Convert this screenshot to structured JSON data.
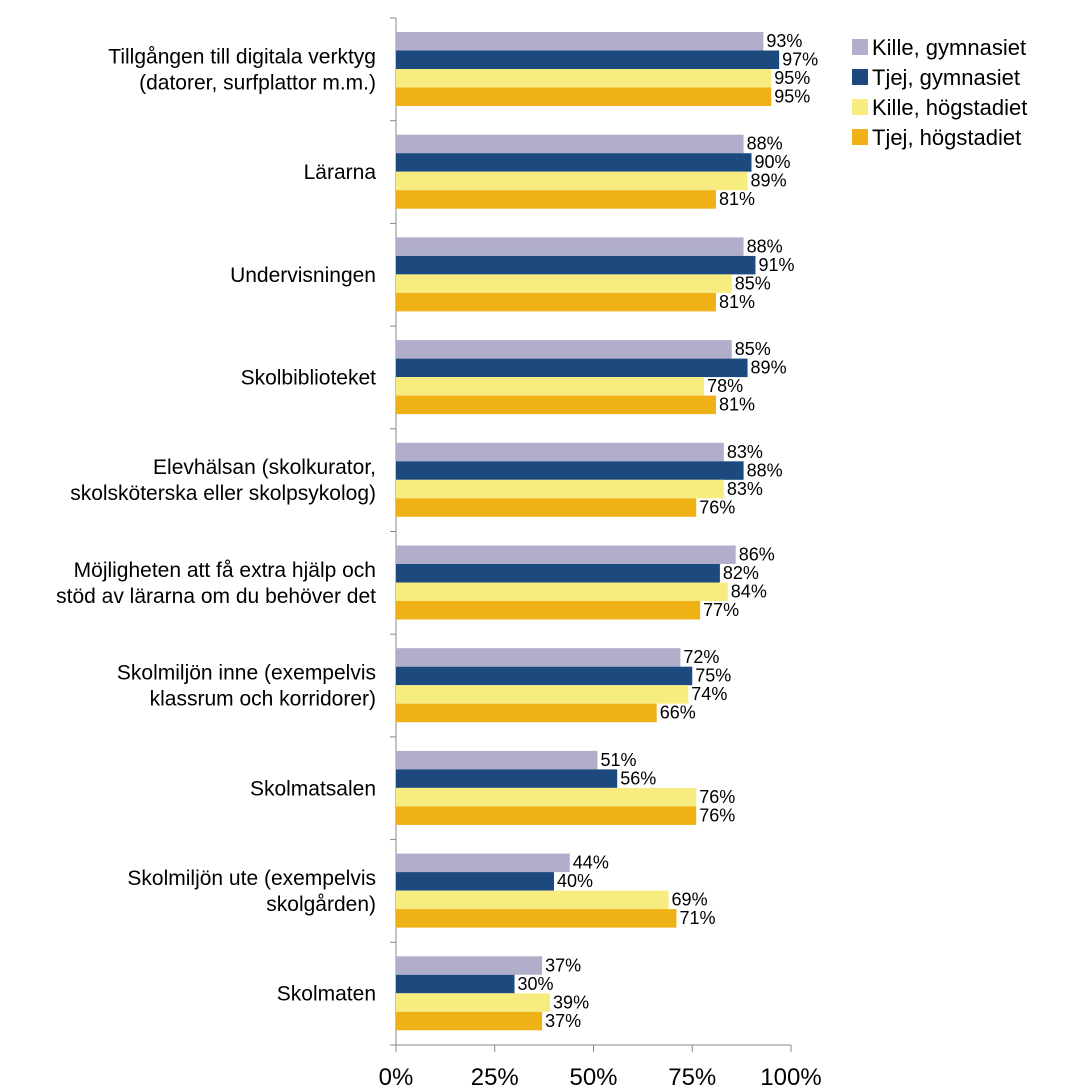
{
  "chart_data": {
    "type": "bar",
    "orientation": "horizontal",
    "categories": [
      [
        "Tillgången till digitala verktyg",
        "(datorer, surfplattor m.m.)"
      ],
      [
        "Lärarna"
      ],
      [
        "Undervisningen"
      ],
      [
        "Skolbiblioteket"
      ],
      [
        "Elevhälsan (skolkurator,",
        "skolsköterska eller skolpsykolog)"
      ],
      [
        "Möjligheten att få extra hjälp och",
        "stöd av lärarna om du behöver det"
      ],
      [
        "Skolmiljön inne (exempelvis",
        "klassrum och korridorer)"
      ],
      [
        "Skolmatsalen"
      ],
      [
        "Skolmiljön ute (exempelvis",
        "skolgården)"
      ],
      [
        "Skolmaten"
      ]
    ],
    "series": [
      {
        "name": "Kille, gymnasiet",
        "color": "#b1aecb",
        "values": [
          93,
          88,
          88,
          85,
          83,
          86,
          72,
          51,
          44,
          37
        ]
      },
      {
        "name": "Tjej, gymnasiet",
        "color": "#1c4a7e",
        "values": [
          97,
          90,
          91,
          89,
          88,
          82,
          75,
          56,
          40,
          30
        ]
      },
      {
        "name": "Kille, högstadiet",
        "color": "#f7ec80",
        "values": [
          95,
          89,
          85,
          78,
          83,
          84,
          74,
          76,
          69,
          39
        ]
      },
      {
        "name": "Tjej, högstadiet",
        "color": "#eeb116",
        "values": [
          95,
          81,
          81,
          81,
          76,
          77,
          66,
          76,
          71,
          37
        ]
      }
    ],
    "value_labels": [
      [
        "93%",
        "88%",
        "88%",
        "85%",
        "83%",
        "86%",
        "72%",
        "51%",
        "44%",
        "37%"
      ],
      [
        "97%",
        "90%",
        "91%",
        "89%",
        "88%",
        "82%",
        "75%",
        "56%",
        "40%",
        "30%"
      ],
      [
        "95%",
        "89%",
        "85%",
        "78%",
        "83%",
        "84%",
        "74%",
        "76%",
        "69%",
        "39%"
      ],
      [
        "95%",
        "81%",
        "81%",
        "81%",
        "76%",
        "77%",
        "66%",
        "76%",
        "71%",
        "37%"
      ]
    ],
    "x_ticks": [
      "0%",
      "25%",
      "50%",
      "75%",
      "100%"
    ],
    "xlim": [
      0,
      100
    ],
    "legend_position": "top-right",
    "grid": false
  }
}
